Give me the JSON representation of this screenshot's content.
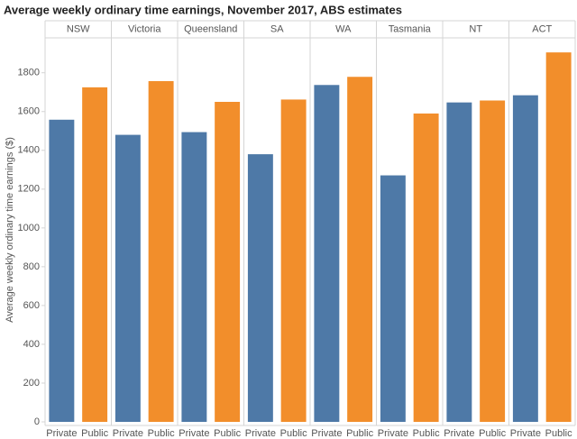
{
  "chart_data": {
    "type": "grouped_bar",
    "title": "Average weekly ordinary time earnings, November 2017, ABS estimates",
    "ylabel": "Average weekly ordinary time earnings ($)",
    "categories": [
      "NSW",
      "Victoria",
      "Queensland",
      "SA",
      "WA",
      "Tasmania",
      "NT",
      "ACT"
    ],
    "series": [
      {
        "name": "Private",
        "color": "#4e79a7",
        "values": [
          1558,
          1480,
          1494,
          1380,
          1737,
          1271,
          1647,
          1684
        ]
      },
      {
        "name": "Public",
        "color": "#f28e2b",
        "values": [
          1725,
          1757,
          1650,
          1662,
          1779,
          1590,
          1657,
          1905
        ]
      }
    ],
    "ylim": [
      0,
      1980
    ],
    "yticks": [
      0,
      200,
      400,
      600,
      800,
      1000,
      1200,
      1400,
      1600,
      1800
    ],
    "grid": false
  }
}
